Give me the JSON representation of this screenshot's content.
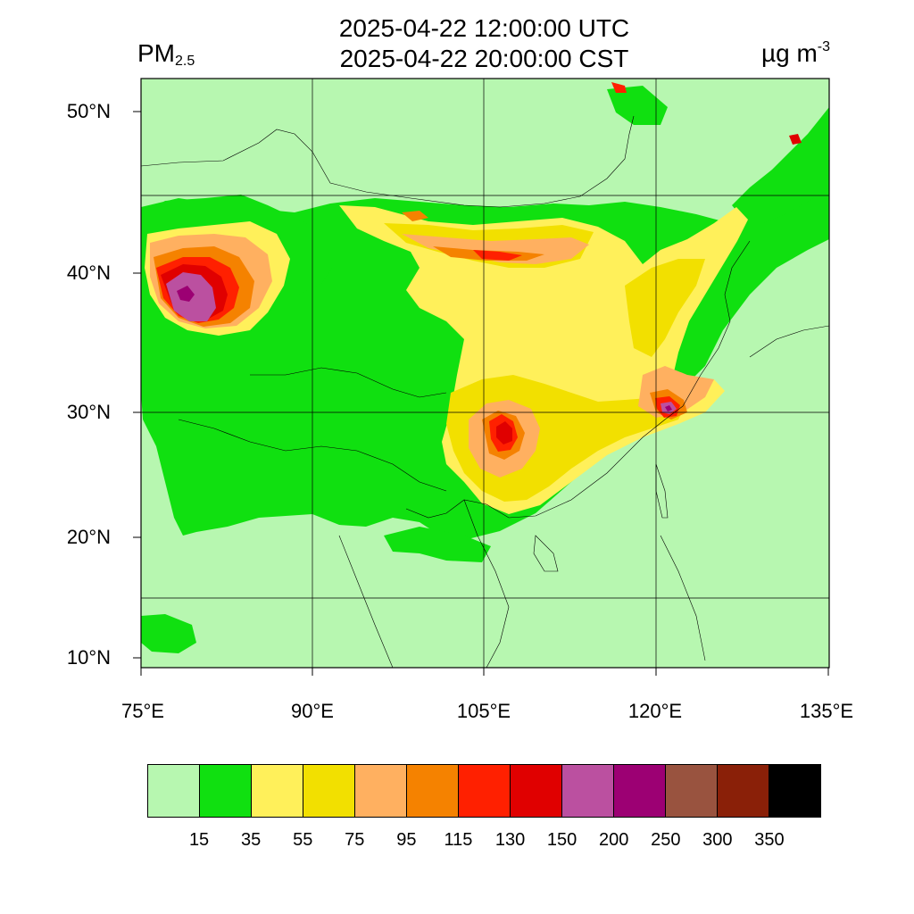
{
  "title": {
    "line1": "2025-04-22 12:00:00 UTC",
    "line2": "2025-04-22 20:00:00 CST"
  },
  "variable": {
    "name": "PM",
    "subscript": "2.5"
  },
  "units": {
    "base": "µg m",
    "exponent": "-3"
  },
  "lat_labels": [
    "50°N",
    "40°N",
    "30°N",
    "20°N",
    "10°N"
  ],
  "lon_labels": [
    "75°E",
    "90°E",
    "105°E",
    "120°E",
    "135°E"
  ],
  "colorbar": {
    "colors": [
      "#b7f7b0",
      "#10e010",
      "#fff05a",
      "#f2e000",
      "#ffb060",
      "#f58200",
      "#ff2000",
      "#e00000",
      "#bb50a0",
      "#9c0073",
      "#99533f",
      "#8a2008",
      "#000000"
    ],
    "ticks": [
      "15",
      "35",
      "55",
      "75",
      "95",
      "115",
      "130",
      "150",
      "200",
      "250",
      "300",
      "350"
    ]
  }
}
